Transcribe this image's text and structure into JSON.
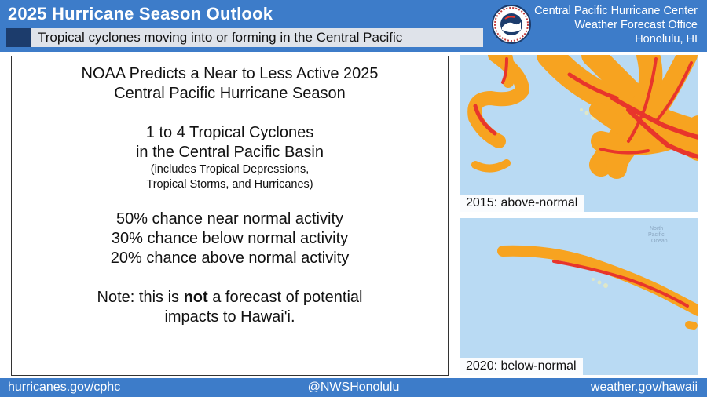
{
  "header": {
    "title": "2025 Hurricane Season Outlook",
    "subtitle": "Tropical cyclones moving into or forming in the Central Pacific",
    "logo_text": "NATIONAL WEATHER SERVICE",
    "office_line1": "Central Pacific Hurricane Center",
    "office_line2": "Weather Forecast Office",
    "office_line3": "Honolulu, HI"
  },
  "panel": {
    "headline1": "NOAA Predicts a Near to Less Active 2025",
    "headline2": "Central Pacific Hurricane Season",
    "count1": "1 to 4 Tropical Cyclones",
    "count2": "in the Central Pacific Basin",
    "includes1": "(includes Tropical Depressions,",
    "includes2": "Tropical Storms, and Hurricanes)",
    "prob_near": "50% chance near normal activity",
    "prob_below": "30% chance below normal activity",
    "prob_above": "20% chance above normal activity",
    "note_pre": "Note: this is ",
    "note_bold": "not",
    "note_post": " a forecast of potential",
    "note_line2": "impacts to Hawai'i."
  },
  "maps": [
    {
      "caption": "2015: above-normal"
    },
    {
      "caption": "2020: below-normal",
      "faint_label1": "North",
      "faint_label2": "Pacific",
      "faint_label3": "Ocean"
    }
  ],
  "footer": {
    "left": "hurricanes.gov/cphc",
    "center": "@NWSHonolulu",
    "right": "weather.gov/hawaii"
  },
  "colors": {
    "header_blue": "#3d7cc9",
    "navy": "#1c3c6c",
    "ocean": "#b9daf3",
    "track_outer": "#f7a320",
    "track_inner": "#e8352b"
  }
}
